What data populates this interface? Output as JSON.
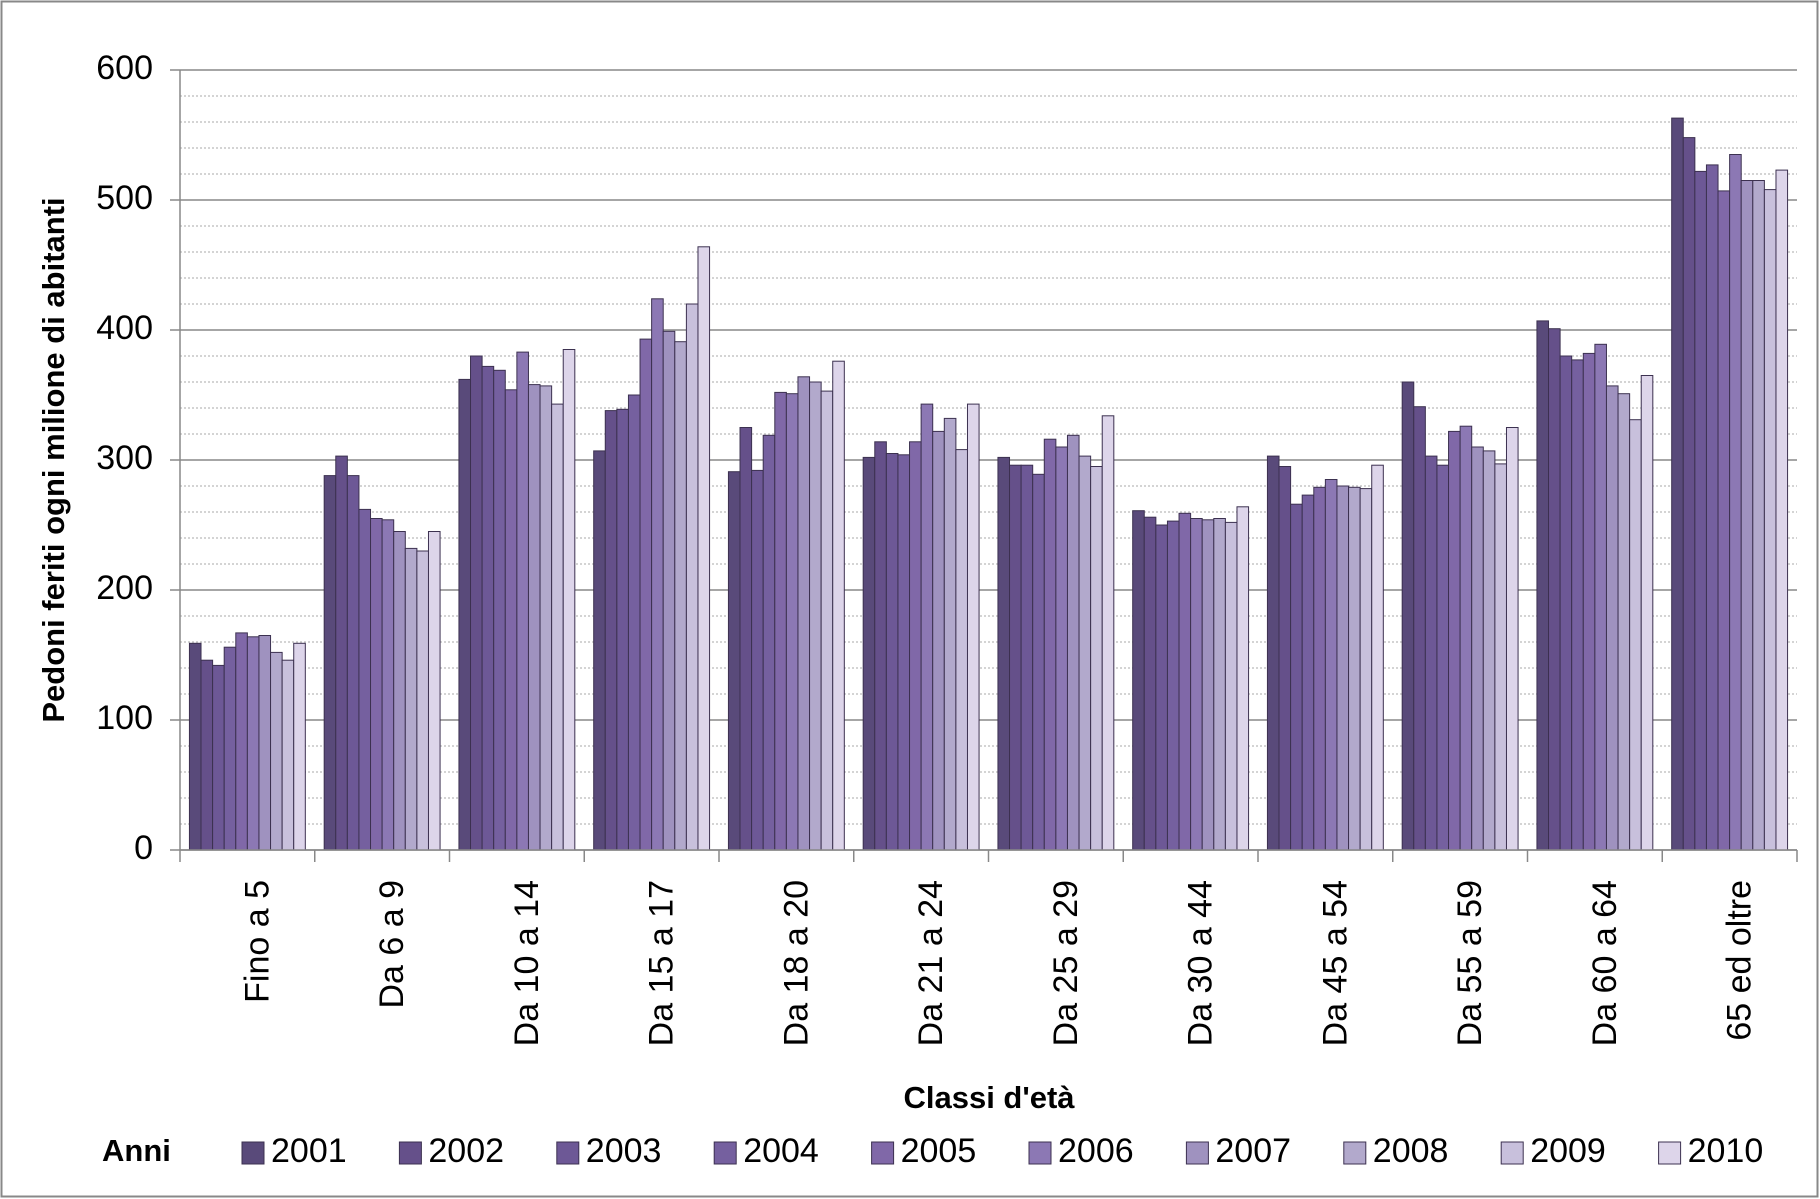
{
  "chart_data": {
    "type": "bar",
    "x_label": "Classi d'età",
    "y_label": "Pedoni feriti ogni milione di abitanti",
    "legend_title": "Anni",
    "legend": "bottom",
    "categories": [
      "Fino a 5",
      "Da 6 a 9",
      "Da 10 a 14",
      "Da 15 a 17",
      "Da 18 a 20",
      "Da 21 a 24",
      "Da 25 a 29",
      "Da 30 a 44",
      "Da 45 a 54",
      "Da 55 a 59",
      "Da 60 a 64",
      "65 ed oltre"
    ],
    "series": [
      {
        "name": "2001",
        "color": "#594a7a",
        "values": [
          159,
          288,
          362,
          307,
          291,
          302,
          302,
          261,
          303,
          360,
          407,
          563
        ]
      },
      {
        "name": "2002",
        "color": "#65508a",
        "values": [
          146,
          303,
          380,
          338,
          325,
          314,
          296,
          256,
          295,
          341,
          401,
          548
        ]
      },
      {
        "name": "2003",
        "color": "#6d5896",
        "values": [
          142,
          288,
          372,
          339,
          292,
          305,
          296,
          250,
          266,
          303,
          380,
          522
        ]
      },
      {
        "name": "2004",
        "color": "#75609f",
        "values": [
          156,
          262,
          369,
          350,
          319,
          304,
          289,
          253,
          273,
          296,
          377,
          527
        ]
      },
      {
        "name": "2005",
        "color": "#8068a8",
        "values": [
          167,
          255,
          354,
          393,
          352,
          314,
          316,
          259,
          279,
          322,
          382,
          507
        ]
      },
      {
        "name": "2006",
        "color": "#8c78b4",
        "values": [
          164,
          254,
          383,
          424,
          351,
          343,
          310,
          255,
          285,
          326,
          389,
          535
        ]
      },
      {
        "name": "2007",
        "color": "#9f92bf",
        "values": [
          165,
          245,
          358,
          399,
          364,
          322,
          319,
          254,
          280,
          310,
          357,
          515
        ]
      },
      {
        "name": "2008",
        "color": "#b2a9cc",
        "values": [
          152,
          232,
          357,
          391,
          360,
          332,
          303,
          255,
          279,
          307,
          351,
          515
        ]
      },
      {
        "name": "2009",
        "color": "#c8c0dc",
        "values": [
          146,
          230,
          343,
          420,
          353,
          308,
          295,
          252,
          278,
          297,
          331,
          508
        ]
      },
      {
        "name": "2010",
        "color": "#ddd5ea",
        "values": [
          159,
          245,
          385,
          464,
          376,
          343,
          334,
          264,
          296,
          325,
          365,
          523
        ]
      }
    ],
    "ylim": [
      0,
      600
    ],
    "yticks": [
      0,
      100,
      200,
      300,
      400,
      500,
      600
    ],
    "minor_yticks": [
      20,
      40,
      60,
      80,
      120,
      140,
      160,
      180,
      220,
      240,
      260,
      280,
      320,
      340,
      360,
      380,
      420,
      440,
      460,
      480,
      520,
      540,
      560,
      580
    ],
    "grid": true
  }
}
